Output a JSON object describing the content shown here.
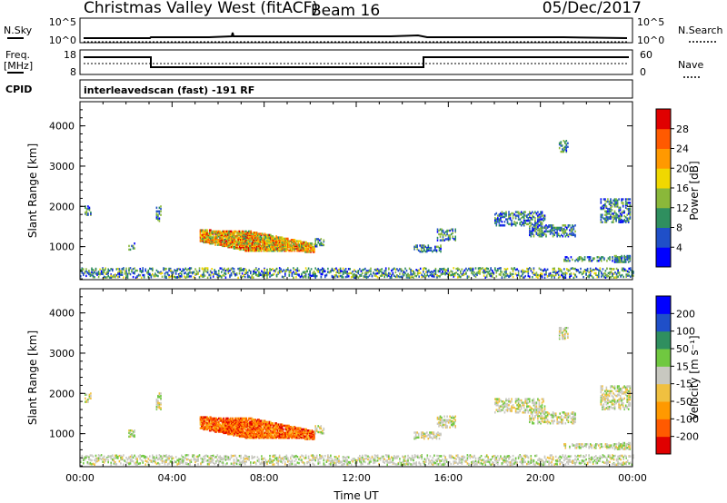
{
  "header": {
    "radar": "Christmas Valley West (fitACF)",
    "beam": "Beam 16",
    "date": "05/Dec/2017"
  },
  "status_panels": {
    "nsky_label": "N.Sky",
    "nsky_ticks": [
      "10^5",
      "10^0"
    ],
    "nsearch_label": "N.Search",
    "nsearch_ticks": [
      "10^5",
      "10^0"
    ],
    "freq_label_line1": "Freq.",
    "freq_label_line2": "[MHz]",
    "freq_ticks": [
      "18",
      "8"
    ],
    "nave_label": "Nave",
    "nave_ticks": [
      "60",
      "0"
    ],
    "cpid_label": "CPID",
    "cpid_text": "interleavedscan (fast) -191 RF"
  },
  "chart_data": [
    {
      "type": "heatmap",
      "name": "power-panel",
      "xlabel": "",
      "ylabel": "Slant Range [km]",
      "xlim": [
        0,
        24
      ],
      "ylim": [
        180,
        4600
      ],
      "yticks": [
        "1000",
        "2000",
        "3000",
        "4000"
      ],
      "colorbar": {
        "label": "Power [dB]",
        "range": [
          0,
          32
        ],
        "ticks": [
          "4",
          "8",
          "12",
          "16",
          "20",
          "24",
          "28"
        ],
        "colors": [
          "#0000ff",
          "#1f4fc8",
          "#2f8f5f",
          "#8ab83a",
          "#f0d800",
          "#ff9900",
          "#ff5a00",
          "#e00000"
        ]
      }
    },
    {
      "type": "heatmap",
      "name": "velocity-panel",
      "xlabel": "Time UT",
      "ylabel": "Slant Range [km]",
      "xlim": [
        0,
        24
      ],
      "ylim": [
        180,
        4600
      ],
      "xticks": [
        "00:00",
        "04:00",
        "08:00",
        "12:00",
        "16:00",
        "20:00",
        "00:00"
      ],
      "yticks": [
        "1000",
        "2000",
        "3000",
        "4000"
      ],
      "colorbar": {
        "label": "Velocity [m s⁻¹]",
        "range": [
          -250,
          250
        ],
        "ticks": [
          "-200",
          "-100",
          "-50",
          "-15",
          "15",
          "50",
          "100",
          "200"
        ],
        "colors": [
          "#e00000",
          "#ff5a00",
          "#ff9900",
          "#f0c040",
          "#c8c8c0",
          "#70c840",
          "#2f8f5f",
          "#1f4fc8",
          "#0000ff"
        ]
      }
    }
  ]
}
